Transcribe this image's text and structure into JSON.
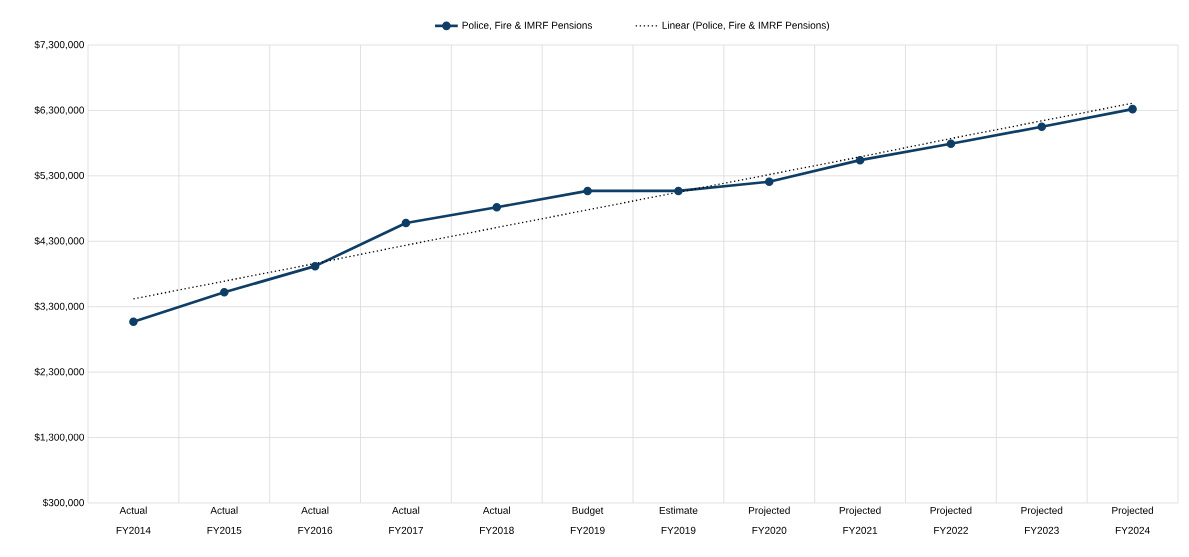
{
  "chart_data": {
    "type": "line",
    "categories": [
      "Actual FY2014",
      "Actual FY2015",
      "Actual FY2016",
      "Actual FY2017",
      "Actual FY2018",
      "Budget FY2019",
      "Estimate FY2019",
      "Projected FY2020",
      "Projected FY2021",
      "Projected FY2022",
      "Projected FY2023",
      "Projected FY2024"
    ],
    "series": [
      {
        "name": "Police, Fire & IMRF Pensions",
        "color": "#0e3d66",
        "marker": "circle",
        "line_style": "solid",
        "values": [
          3070000,
          3520000,
          3920000,
          4580000,
          4820000,
          5070000,
          5070000,
          5210000,
          5540000,
          5790000,
          6050000,
          6320000
        ]
      },
      {
        "name": "Linear (Police, Fire & IMRF Pensions)",
        "color": "#000000",
        "marker": "none",
        "line_style": "dotted",
        "values": [
          3420000,
          3690000,
          3960000,
          4240000,
          4510000,
          4780000,
          5050000,
          5320000,
          5590000,
          5870000,
          6140000,
          6410000
        ]
      }
    ],
    "ylim": [
      300000,
      7300000
    ],
    "yticks": [
      {
        "value": 300000,
        "label": "$300,000"
      },
      {
        "value": 1300000,
        "label": "$1,300,000"
      },
      {
        "value": 2300000,
        "label": "$2,300,000"
      },
      {
        "value": 3300000,
        "label": "$3,300,000"
      },
      {
        "value": 4300000,
        "label": "$4,300,000"
      },
      {
        "value": 5300000,
        "label": "$5,300,000"
      },
      {
        "value": 6300000,
        "label": "$6,300,000"
      },
      {
        "value": 7300000,
        "label": "$7,300,000"
      }
    ],
    "grid": true,
    "legend": "top"
  }
}
